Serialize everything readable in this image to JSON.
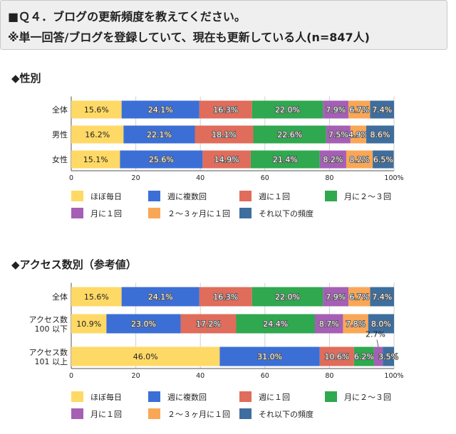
{
  "question": {
    "line1": "■Ｑ４．ブログの更新頻度を教えてください。",
    "line2": "※単一回答/ブログを登録していて、現在も更新している人(n=847人)"
  },
  "legend": {
    "items": [
      {
        "label": "ほぼ毎日",
        "color": "#FFD966"
      },
      {
        "label": "週に複数回",
        "color": "#3C6FD6"
      },
      {
        "label": "週に１回",
        "color": "#E06C5B"
      },
      {
        "label": "月に２～３回",
        "color": "#2FA84F"
      },
      {
        "label": "月に１回",
        "color": "#A55FB5"
      },
      {
        "label": "２～３ヶ月に１回",
        "color": "#F9A756"
      },
      {
        "label": "それ以下の頻度",
        "color": "#3D6E9E"
      }
    ]
  },
  "chart_data": [
    {
      "type": "bar",
      "orientation": "horizontal",
      "stacked": true,
      "title": "◆性別",
      "categories": [
        [
          "全体"
        ],
        [
          "男性"
        ],
        [
          "女性"
        ]
      ],
      "series": [
        {
          "name": "ほぼ毎日",
          "values": [
            15.6,
            16.2,
            15.1
          ]
        },
        {
          "name": "週に複数回",
          "values": [
            24.1,
            22.1,
            25.6
          ]
        },
        {
          "name": "週に１回",
          "values": [
            16.3,
            18.1,
            14.9
          ]
        },
        {
          "name": "月に２～３回",
          "values": [
            22.0,
            22.6,
            21.4
          ]
        },
        {
          "name": "月に１回",
          "values": [
            7.9,
            7.5,
            8.2
          ]
        },
        {
          "name": "２～３ヶ月に１回",
          "values": [
            6.7,
            4.9,
            8.2
          ]
        },
        {
          "name": "それ以下の頻度",
          "values": [
            7.4,
            8.6,
            6.5
          ]
        }
      ],
      "xlim": [
        0,
        100
      ],
      "xticks": [
        "0",
        "20",
        "40",
        "60",
        "80",
        "100%"
      ]
    },
    {
      "type": "bar",
      "orientation": "horizontal",
      "stacked": true,
      "title": "◆アクセス数別（参考値）",
      "categories": [
        [
          "全体"
        ],
        [
          "アクセス数",
          "100 以下"
        ],
        [
          "アクセス数",
          "101 以上"
        ]
      ],
      "series": [
        {
          "name": "ほぼ毎日",
          "values": [
            15.6,
            10.9,
            46.0
          ]
        },
        {
          "name": "週に複数回",
          "values": [
            24.1,
            23.0,
            31.0
          ]
        },
        {
          "name": "週に１回",
          "values": [
            16.3,
            17.2,
            10.6
          ]
        },
        {
          "name": "月に２～３回",
          "values": [
            22.0,
            24.4,
            6.2
          ]
        },
        {
          "name": "月に１回",
          "values": [
            7.9,
            8.7,
            2.7
          ]
        },
        {
          "name": "２～３ヶ月に１回",
          "values": [
            6.7,
            7.8,
            0.0
          ]
        },
        {
          "name": "それ以下の頻度",
          "values": [
            7.4,
            8.0,
            3.5
          ]
        }
      ],
      "callouts": [
        {
          "row": 2,
          "series": 4,
          "text": "2.7%"
        }
      ],
      "xlim": [
        0,
        100
      ],
      "xticks": [
        "0",
        "20",
        "40",
        "60",
        "80",
        "100%"
      ]
    }
  ]
}
